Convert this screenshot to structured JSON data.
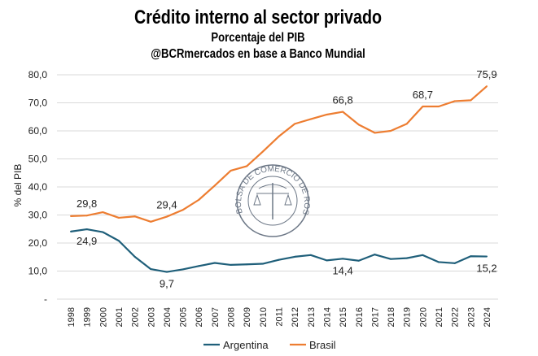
{
  "chart_data": {
    "type": "line",
    "title": "Crédito interno al sector privado",
    "subtitle": "Porcentaje del PIB",
    "source": "@BCRmercados en base a Banco Mundial",
    "xlabel": "",
    "ylabel": "% del PIB",
    "ylim": [
      0,
      80
    ],
    "yticks": [
      "-",
      "10,0",
      "20,0",
      "30,0",
      "40,0",
      "50,0",
      "60,0",
      "70,0",
      "80,0"
    ],
    "grid": true,
    "legend": "bottom",
    "x": [
      1998,
      1999,
      2000,
      2001,
      2002,
      2003,
      2004,
      2005,
      2006,
      2007,
      2008,
      2009,
      2010,
      2011,
      2012,
      2013,
      2014,
      2015,
      2016,
      2017,
      2018,
      2019,
      2020,
      2021,
      2022,
      2023,
      2024
    ],
    "series": [
      {
        "name": "Argentina",
        "color": "#1f5f7a",
        "values": [
          24.1,
          24.9,
          23.9,
          20.8,
          15.1,
          10.7,
          9.7,
          10.6,
          11.8,
          12.9,
          12.2,
          12.4,
          12.6,
          14.0,
          15.1,
          15.7,
          13.8,
          14.4,
          13.7,
          15.9,
          14.3,
          14.6,
          15.7,
          13.2,
          12.8,
          15.3,
          15.2
        ],
        "labels": [
          {
            "year": 1999,
            "text": "24,9",
            "pos": "below"
          },
          {
            "year": 2004,
            "text": "9,7",
            "pos": "below"
          },
          {
            "year": 2015,
            "text": "14,4",
            "pos": "below"
          },
          {
            "year": 2024,
            "text": "15,2",
            "pos": "below"
          }
        ]
      },
      {
        "name": "Brasil",
        "color": "#ed7d31",
        "values": [
          29.6,
          29.8,
          31.0,
          29.0,
          29.5,
          27.6,
          29.4,
          31.8,
          35.4,
          40.5,
          45.8,
          47.4,
          52.6,
          58.0,
          62.5,
          64.2,
          65.8,
          66.8,
          62.2,
          59.3,
          60.0,
          62.5,
          68.7,
          68.7,
          70.6,
          70.9,
          75.9
        ],
        "labels": [
          {
            "year": 1999,
            "text": "29,8",
            "pos": "above"
          },
          {
            "year": 2004,
            "text": "29,4",
            "pos": "above"
          },
          {
            "year": 2015,
            "text": "66,8",
            "pos": "above"
          },
          {
            "year": 2020,
            "text": "68,7",
            "pos": "above"
          },
          {
            "year": 2024,
            "text": "75,9",
            "pos": "above"
          }
        ]
      }
    ]
  },
  "watermark": "BOLSA DE COMERCIO DE ROSARIO"
}
